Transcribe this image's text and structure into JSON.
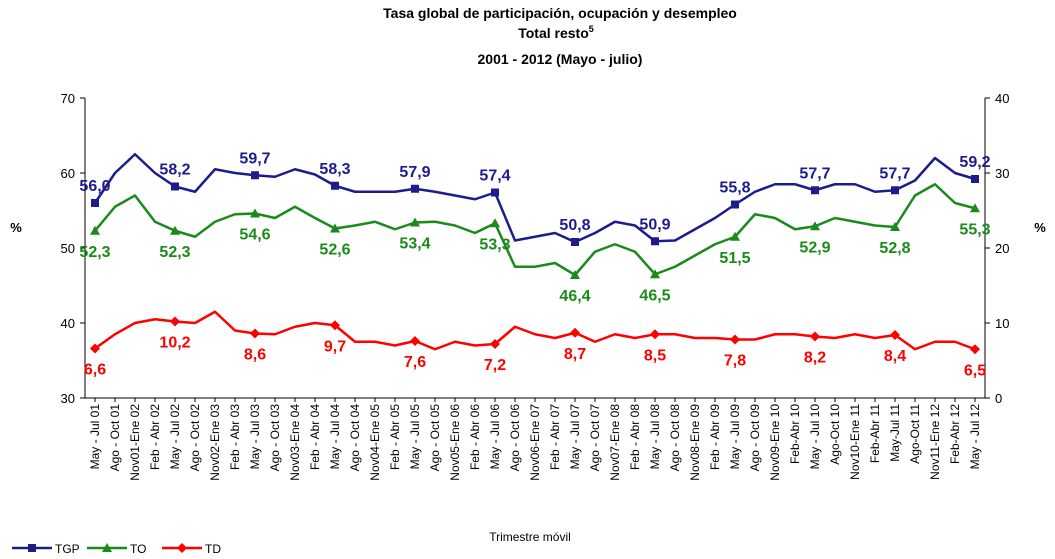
{
  "chart_data": {
    "type": "line",
    "title": "Tasa global de participación, ocupación y desempleo",
    "subtitle": "Total resto",
    "subtitle_footnote": "5",
    "period": "2001 - 2012 (Mayo - julio)",
    "x_label": "Trimestre móvil",
    "y_label": "%",
    "y2_label": "%",
    "ylim": [
      30,
      70
    ],
    "yticks": [
      30,
      40,
      50,
      60,
      70
    ],
    "y2lim": [
      0,
      40
    ],
    "y2ticks": [
      0,
      10,
      20,
      30,
      40
    ],
    "grid": false,
    "legend": "bottom-left",
    "categories": [
      "May - Jul 01",
      "Ago - Oct 01",
      "Nov01-Ene 02",
      "Feb - Abr 02",
      "May - Jul 02",
      "Ago - Oct 02",
      "Nov02-Ene 03",
      "Feb - Abr 03",
      "May - Jul 03",
      "Ago - Oct 03",
      "Nov03-Ene 04",
      "Feb - Abr 04",
      "May - Jul 04",
      "Ago - Oct 04",
      "Nov04-Ene 05",
      "Feb - Abr 05",
      "May - Jul 05",
      "Ago - Oct 05",
      "Nov05-Ene 06",
      "Feb - Abr 06",
      "May - Jul 06",
      "Ago - Oct 06",
      "Nov06-Ene 07",
      "Feb - Abr 07",
      "May - Jul 07",
      "Ago - Oct 07",
      "Nov07-Ene 08",
      "Feb - Abr 08",
      "May - Jul 08",
      "Ago - Oct 08",
      "Nov08-Ene 09",
      "Feb - Abr 09",
      "May - Jul 09",
      "Ago - Oct 09",
      "Nov09-Ene 10",
      "Feb-Abr 10",
      "May - Jul 10",
      "Ago-Oct 10",
      "Nov10-Ene 11",
      "Feb-Abr 11",
      "May-Jul 11",
      "Ago-Oct 11",
      "Nov11-Ene 12",
      "Feb-Abr 12",
      "May - Jul 12"
    ],
    "series": [
      {
        "name": "TGP",
        "color": "#1c1c8c",
        "marker": "square",
        "label_side": "above",
        "values": [
          56.0,
          60,
          62.5,
          60,
          58.2,
          57.5,
          60.5,
          60,
          59.7,
          59.5,
          60.5,
          59.8,
          58.3,
          57.5,
          57.5,
          57.5,
          57.9,
          57.5,
          57,
          56.5,
          57.4,
          51,
          51.5,
          52,
          50.8,
          52,
          53.5,
          53,
          50.9,
          51,
          52.5,
          54,
          55.8,
          57.5,
          58.5,
          58.5,
          57.7,
          58.5,
          58.5,
          57.5,
          57.7,
          59,
          62,
          60,
          59.2
        ],
        "value_labels": [
          "56,0",
          null,
          null,
          null,
          "58,2",
          null,
          null,
          null,
          "59,7",
          null,
          null,
          null,
          "58,3",
          null,
          null,
          null,
          "57,9",
          null,
          null,
          null,
          "57,4",
          null,
          null,
          null,
          "50,8",
          null,
          null,
          null,
          "50,9",
          null,
          null,
          null,
          "55,8",
          null,
          null,
          null,
          "57,7",
          null,
          null,
          null,
          "57,7",
          null,
          null,
          null,
          "59,2"
        ]
      },
      {
        "name": "TO",
        "color": "#1a8a1a",
        "marker": "triangle",
        "label_side": "below",
        "values": [
          52.3,
          55.5,
          57,
          53.5,
          52.3,
          51.5,
          53.5,
          54.5,
          54.6,
          54,
          55.5,
          54,
          52.6,
          53,
          53.5,
          52.5,
          53.4,
          53.5,
          53,
          52,
          53.3,
          47.5,
          47.5,
          48,
          46.4,
          49.5,
          50.5,
          49.5,
          46.5,
          47.5,
          49,
          50.5,
          51.5,
          54.5,
          54,
          52.5,
          52.9,
          54,
          53.5,
          53,
          52.8,
          57,
          58.5,
          56,
          55.3
        ],
        "value_labels": [
          "52,3",
          null,
          null,
          null,
          "52,3",
          null,
          null,
          null,
          "54,6",
          null,
          null,
          null,
          "52,6",
          null,
          null,
          null,
          "53,4",
          null,
          null,
          null,
          "53,3",
          null,
          null,
          null,
          "46,4",
          null,
          null,
          null,
          "46,5",
          null,
          null,
          null,
          "51,5",
          null,
          null,
          null,
          "52,9",
          null,
          null,
          null,
          "52,8",
          null,
          null,
          null,
          "55,3"
        ]
      },
      {
        "name": "TD",
        "color": "#ff0000",
        "marker": "diamond",
        "label_side": "below",
        "axis": "y2",
        "values": [
          6.6,
          8.5,
          10,
          10.5,
          10.2,
          10,
          11.5,
          9,
          8.6,
          8.5,
          9.5,
          10,
          9.7,
          7.5,
          7.5,
          7,
          7.6,
          6.5,
          7.5,
          7,
          7.2,
          9.5,
          8.5,
          8,
          8.7,
          7.5,
          8.5,
          8,
          8.5,
          8.5,
          8,
          8,
          7.8,
          7.8,
          8.5,
          8.5,
          8.2,
          8,
          8.5,
          8,
          8.4,
          6.5,
          7.5,
          7.5,
          6.5
        ],
        "value_labels": [
          "6,6",
          null,
          null,
          null,
          "10,2",
          null,
          null,
          null,
          "8,6",
          null,
          null,
          null,
          "9,7",
          null,
          null,
          null,
          "7,6",
          null,
          null,
          null,
          "7,2",
          null,
          null,
          null,
          "8,7",
          null,
          null,
          null,
          "8,5",
          null,
          null,
          null,
          "7,8",
          null,
          null,
          null,
          "8,2",
          null,
          null,
          null,
          "8,4",
          null,
          null,
          null,
          "6,5"
        ]
      }
    ]
  }
}
